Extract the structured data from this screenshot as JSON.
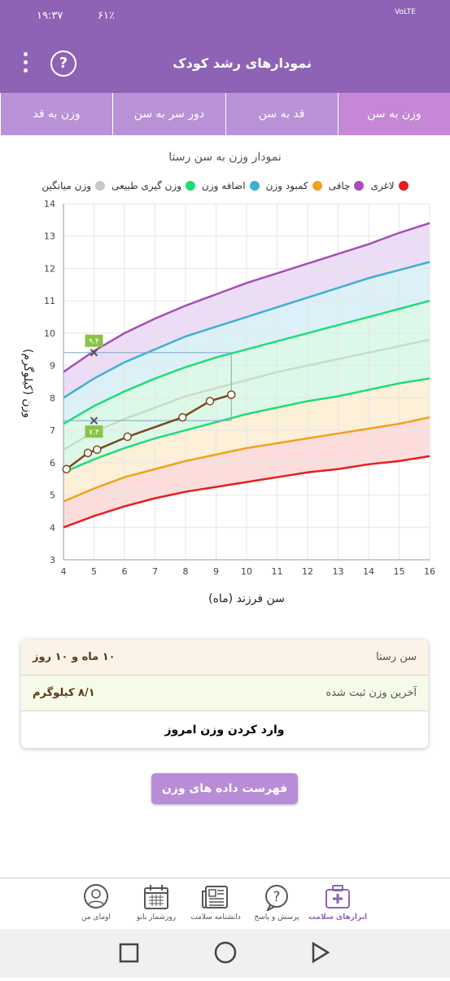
{
  "status_bar": {
    "time": "۱۹:۳۷",
    "battery": "۶۱٪",
    "network": "VoLTE"
  },
  "app_bar": {
    "title": "نمودارهای رشد کودک"
  },
  "tabs": [
    {
      "label": "وزن به سن",
      "active": true
    },
    {
      "label": "قد به سن",
      "active": false
    },
    {
      "label": "دور سر به سن",
      "active": false
    },
    {
      "label": "وزن به قد",
      "active": false
    }
  ],
  "chart_title": "نمودار وزن به سن رستا",
  "legend": [
    {
      "label": "لاغری",
      "color": "#e61e1e"
    },
    {
      "label": "چاقی",
      "color": "#a44fb8"
    },
    {
      "label": "کمبود وزن",
      "color": "#f0a21c"
    },
    {
      "label": "اضافه وزن",
      "color": "#3db0d6"
    },
    {
      "label": "وزن گیری طبیعی",
      "color": "#1fdc78"
    },
    {
      "label": "وزن میانگین",
      "color": "#c8c8c8"
    }
  ],
  "chart_data": {
    "type": "line",
    "xlabel": "سن فرزند (ماه)",
    "ylabel": "وزن (کیلوگرم)",
    "xlim": [
      4,
      16
    ],
    "ylim": [
      3,
      14
    ],
    "x_ticks": [
      4,
      5,
      6,
      7,
      8,
      9,
      10,
      11,
      12,
      13,
      14,
      15,
      16
    ],
    "y_ticks": [
      3,
      4,
      5,
      6,
      7,
      8,
      9,
      10,
      11,
      12,
      13,
      14
    ],
    "grid": true,
    "reference_curves": [
      {
        "name": "چاقی",
        "color": "#a44fb8",
        "x": [
          4,
          5,
          6,
          7,
          8,
          9,
          10,
          11,
          12,
          13,
          14,
          15,
          16
        ],
        "y": [
          8.8,
          9.45,
          10.0,
          10.45,
          10.85,
          11.2,
          11.55,
          11.85,
          12.15,
          12.45,
          12.75,
          13.1,
          13.4
        ]
      },
      {
        "name": "اضافه وزن",
        "color": "#3db0d6",
        "x": [
          4,
          5,
          6,
          7,
          8,
          9,
          10,
          11,
          12,
          13,
          14,
          15,
          16
        ],
        "y": [
          8.0,
          8.6,
          9.1,
          9.5,
          9.9,
          10.2,
          10.5,
          10.8,
          11.1,
          11.4,
          11.7,
          11.95,
          12.2
        ]
      },
      {
        "name": "وزن گیری طبیعی",
        "color": "#1fdc78",
        "x": [
          4,
          5,
          6,
          7,
          8,
          9,
          10,
          11,
          12,
          13,
          14,
          15,
          16
        ],
        "y": [
          7.2,
          7.75,
          8.2,
          8.6,
          8.95,
          9.25,
          9.5,
          9.75,
          10.0,
          10.25,
          10.5,
          10.75,
          11.0
        ]
      },
      {
        "name": "وزن میانگین",
        "color": "#c8dcc8",
        "x": [
          4,
          5,
          6,
          7,
          8,
          9,
          10,
          11,
          12,
          13,
          14,
          15,
          16
        ],
        "y": [
          6.4,
          6.95,
          7.35,
          7.7,
          8.05,
          8.3,
          8.55,
          8.8,
          9.0,
          9.2,
          9.4,
          9.6,
          9.8
        ]
      },
      {
        "name": "وزن گیری طبیعی",
        "color": "#1fdc78",
        "x": [
          4,
          5,
          6,
          7,
          8,
          9,
          10,
          11,
          12,
          13,
          14,
          15,
          16
        ],
        "y": [
          5.7,
          6.1,
          6.45,
          6.75,
          7.0,
          7.25,
          7.5,
          7.7,
          7.9,
          8.05,
          8.25,
          8.45,
          8.6
        ]
      },
      {
        "name": "کمبود وزن",
        "color": "#f0a21c",
        "x": [
          4,
          5,
          6,
          7,
          8,
          9,
          10,
          11,
          12,
          13,
          14,
          15,
          16
        ],
        "y": [
          4.8,
          5.2,
          5.55,
          5.8,
          6.05,
          6.25,
          6.45,
          6.6,
          6.75,
          6.9,
          7.05,
          7.2,
          7.4
        ]
      },
      {
        "name": "لاغری",
        "color": "#e61e1e",
        "x": [
          4,
          5,
          6,
          7,
          8,
          9,
          10,
          11,
          12,
          13,
          14,
          15,
          16
        ],
        "y": [
          4.0,
          4.35,
          4.65,
          4.9,
          5.1,
          5.25,
          5.4,
          5.55,
          5.7,
          5.8,
          5.95,
          6.05,
          6.2
        ]
      }
    ],
    "child_series": {
      "color": "#7a4a1e",
      "x": [
        4.1,
        4.8,
        5.1,
        6.1,
        7.9,
        8.8,
        9.5
      ],
      "y": [
        5.8,
        6.3,
        6.4,
        6.8,
        7.4,
        7.9,
        8.1
      ]
    },
    "markers": [
      {
        "label": "۹.۴",
        "x": 5,
        "y": 9.4
      },
      {
        "label": "۷.۳",
        "x": 5,
        "y": 7.3
      }
    ]
  },
  "info_card": {
    "age_label": "سن رستا",
    "age_value": "۱۰ ماه و ۱۰ روز",
    "weight_label": "آخرین وزن ثبت شده",
    "weight_value": "۸/۱ کیلوگرم",
    "enter_weight": "وارد کردن وزن امروز"
  },
  "list_button": "فهرست داده های وزن رستا",
  "bottom_nav": [
    {
      "label": "ابزارهای سلامت",
      "icon": "medkit-icon",
      "active": true
    },
    {
      "label": "پرسش و پاسخ",
      "icon": "question-bubble-icon",
      "active": false
    },
    {
      "label": "دانشنامه سلامت",
      "icon": "newspaper-icon",
      "active": false
    },
    {
      "label": "روزشمار بانو",
      "icon": "calendar-icon",
      "active": false
    },
    {
      "label": "اومای من",
      "icon": "profile-icon",
      "active": false
    }
  ]
}
